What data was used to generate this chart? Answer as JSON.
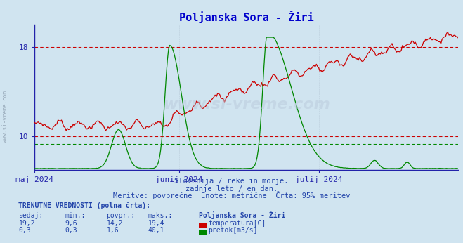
{
  "title": "Poljanska Sora - Žiri",
  "title_color": "#0000cc",
  "bg_color": "#d0e4f0",
  "x_tick_labels": [
    "maj 2024",
    "junij 2024",
    "julij 2024"
  ],
  "x_tick_positions": [
    0,
    31,
    61
  ],
  "temp_color": "#cc0000",
  "flow_color": "#008800",
  "temp_hline_values": [
    10,
    18
  ],
  "flow_hline_value": 8.0,
  "temp_ylim_min": 7.0,
  "temp_ylim_max": 20.0,
  "flow_ylim_min": 0.0,
  "flow_ylim_max": 45.0,
  "temp_yticks": [
    10,
    18
  ],
  "watermark": "www.si-vreme.com",
  "sub_text1": "Slovenija / reke in morje.",
  "sub_text2": "zadnje leto / en dan.",
  "sub_text3": "Meritve: povprečne  Enote: metrične  Črta: 95% meritev",
  "legend_title": "TRENUTNE VREDNOSTI (polna črta):",
  "col_headers": [
    "sedaj:",
    "min.:",
    "povpr.:",
    "maks.:"
  ],
  "col_values_temp": [
    "19,2",
    "9,6",
    "14,2",
    "19,4"
  ],
  "col_values_flow": [
    "0,3",
    "0,3",
    "1,6",
    "40,1"
  ],
  "legend_label_temp": "temperatura[C]",
  "legend_label_flow": "pretok[m3/s]",
  "station_name": "Poljanska Sora - Žiri",
  "axis_color": "#2222aa",
  "grid_color": "#aabbcc",
  "text_color": "#2244aa",
  "n_days": 91
}
